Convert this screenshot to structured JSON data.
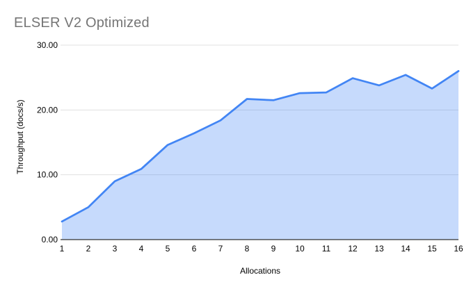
{
  "chart_data": {
    "type": "area",
    "title": "ELSER V2 Optimized",
    "xlabel": "Allocations",
    "ylabel": "Throughput (docs/s)",
    "x": [
      "1",
      "2",
      "3",
      "4",
      "5",
      "6",
      "7",
      "8",
      "9",
      "10",
      "11",
      "12",
      "13",
      "14",
      "15",
      "16"
    ],
    "values": [
      2.8,
      5.0,
      9.0,
      10.9,
      14.6,
      16.4,
      18.4,
      21.7,
      21.5,
      22.6,
      22.7,
      24.9,
      23.8,
      25.4,
      23.3,
      26.0
    ],
    "ylim": [
      0,
      30
    ],
    "y_ticks": [
      0,
      10,
      20,
      30
    ],
    "y_tick_labels": [
      "0.00",
      "10.00",
      "20.00",
      "30.00"
    ],
    "grid": "horizontal",
    "legend": "none",
    "colors": {
      "line": "#4285f4",
      "fill": "rgba(66,133,244,0.3)",
      "gridline": "#e0e0e0",
      "axis_line": "#333333",
      "title_text": "#757575",
      "tick_text": "#000000",
      "axis_title_text": "#000000"
    }
  }
}
